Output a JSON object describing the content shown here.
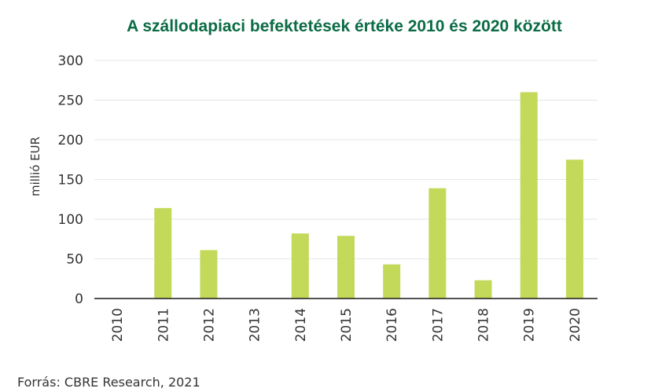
{
  "colors": {
    "title": "#0b6b45",
    "bar": "#c2d95a",
    "grid": "#e6e6e6",
    "axis": "#1a1a1a",
    "text": "#333333"
  },
  "source_text": "Forrás: CBRE Research, 2021",
  "chart_data": {
    "type": "bar",
    "title": "A szállodapiaci befektetések értéke 2010 és 2020 között",
    "xlabel": "",
    "ylabel": "millió EUR",
    "ylim": [
      0,
      300
    ],
    "yticks": [
      0,
      50,
      100,
      150,
      200,
      250,
      300
    ],
    "grid": true,
    "categories": [
      "2010",
      "2011",
      "2012",
      "2013",
      "2014",
      "2015",
      "2016",
      "2017",
      "2018",
      "2019",
      "2020"
    ],
    "values": [
      0,
      114,
      61,
      0,
      82,
      79,
      43,
      139,
      23,
      260,
      175
    ]
  }
}
